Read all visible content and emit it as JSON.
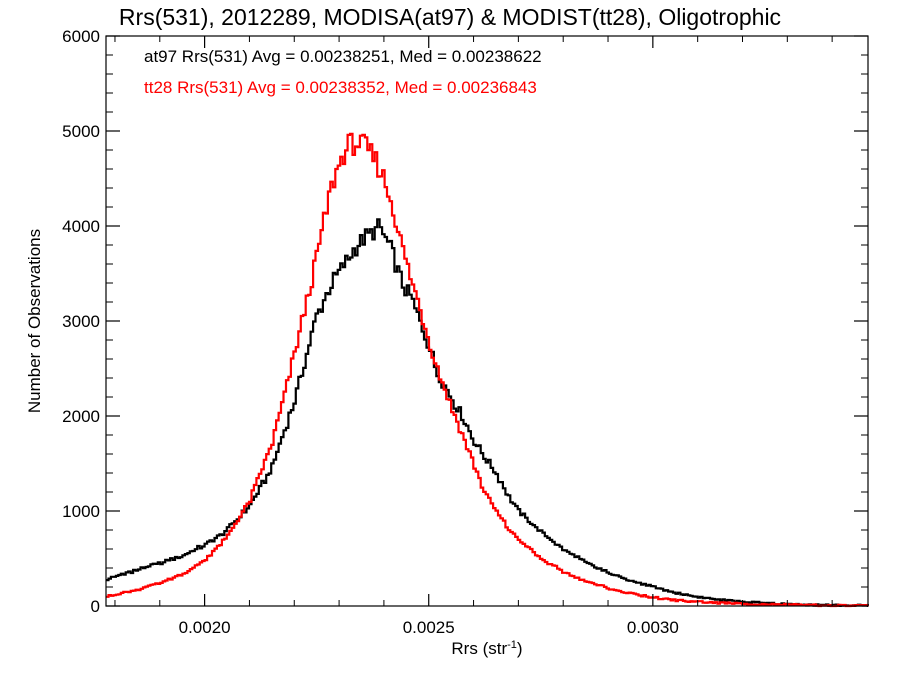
{
  "chart_data": {
    "type": "line",
    "title": "Rrs(531), 2012289, MODISA(at97) & MODIST(tt28), Oligotrophic",
    "xlabel_main": "Rrs (str",
    "xlabel_sup": "-1",
    "xlabel_close": ")",
    "ylabel": "Number of Observations",
    "xlim": [
      0.00178,
      0.00348
    ],
    "ylim": [
      0,
      6000
    ],
    "x_ticks": [
      {
        "value": 0.002,
        "label": "0.0020"
      },
      {
        "value": 0.0025,
        "label": "0.0025"
      },
      {
        "value": 0.003,
        "label": "0.0030"
      }
    ],
    "y_ticks": [
      {
        "value": 0,
        "label": "0"
      },
      {
        "value": 1000,
        "label": "1000"
      },
      {
        "value": 2000,
        "label": "2000"
      },
      {
        "value": 3000,
        "label": "3000"
      },
      {
        "value": 4000,
        "label": "4000"
      },
      {
        "value": 5000,
        "label": "5000"
      },
      {
        "value": 6000,
        "label": "6000"
      }
    ],
    "grid": false,
    "annotations": [
      {
        "text": "at97 Rrs(531) Avg = 0.00238251, Med = 0.00238622",
        "color": "#000000"
      },
      {
        "text": "tt28 Rrs(531) Avg = 0.00238352, Med = 0.00236843",
        "color": "#ff0000"
      }
    ],
    "series": [
      {
        "color": "#000000",
        "x": [
          0.00178,
          0.00185,
          0.0019,
          0.00195,
          0.002,
          0.00205,
          0.0021,
          0.00215,
          0.0022,
          0.00225,
          0.00228,
          0.0023,
          0.00232,
          0.00234,
          0.00236,
          0.00238,
          0.00239,
          0.0024,
          0.00242,
          0.00244,
          0.00246,
          0.00248,
          0.0025,
          0.00252,
          0.00255,
          0.00258,
          0.0026,
          0.00262,
          0.00265,
          0.00268,
          0.0027,
          0.00275,
          0.0028,
          0.00285,
          0.0029,
          0.00295,
          0.003,
          0.00305,
          0.0031,
          0.00315,
          0.0032,
          0.00325,
          0.0033,
          0.00335,
          0.0034,
          0.00348
        ],
        "y": [
          280,
          380,
          450,
          530,
          640,
          800,
          1050,
          1450,
          2150,
          3050,
          3350,
          3520,
          3650,
          3800,
          3880,
          3950,
          4000,
          3900,
          3700,
          3400,
          3250,
          3000,
          2750,
          2450,
          2200,
          1950,
          1750,
          1600,
          1400,
          1150,
          1000,
          780,
          600,
          460,
          350,
          270,
          200,
          140,
          95,
          65,
          45,
          30,
          20,
          12,
          8,
          4
        ]
      },
      {
        "color": "#ff0000",
        "x": [
          0.00178,
          0.00185,
          0.0019,
          0.00195,
          0.002,
          0.00205,
          0.0021,
          0.00215,
          0.00218,
          0.0022,
          0.00222,
          0.00224,
          0.00226,
          0.00228,
          0.0023,
          0.00232,
          0.00234,
          0.00236,
          0.00238,
          0.0024,
          0.00242,
          0.00244,
          0.00246,
          0.00248,
          0.0025,
          0.00252,
          0.00255,
          0.00258,
          0.0026,
          0.00262,
          0.00265,
          0.00268,
          0.0027,
          0.00275,
          0.0028,
          0.00285,
          0.0029,
          0.00295,
          0.003,
          0.00305,
          0.0031,
          0.00315,
          0.0032,
          0.00325,
          0.0033,
          0.00335,
          0.0034,
          0.00348
        ],
        "y": [
          100,
          170,
          240,
          330,
          480,
          720,
          1100,
          1700,
          2250,
          2650,
          3050,
          3450,
          3900,
          4350,
          4650,
          4850,
          4880,
          4830,
          4700,
          4500,
          4200,
          3800,
          3450,
          3150,
          2800,
          2500,
          2100,
          1750,
          1500,
          1250,
          1000,
          800,
          700,
          500,
          360,
          260,
          190,
          130,
          90,
          60,
          45,
          32,
          24,
          18,
          12,
          8,
          4,
          2
        ]
      }
    ]
  }
}
